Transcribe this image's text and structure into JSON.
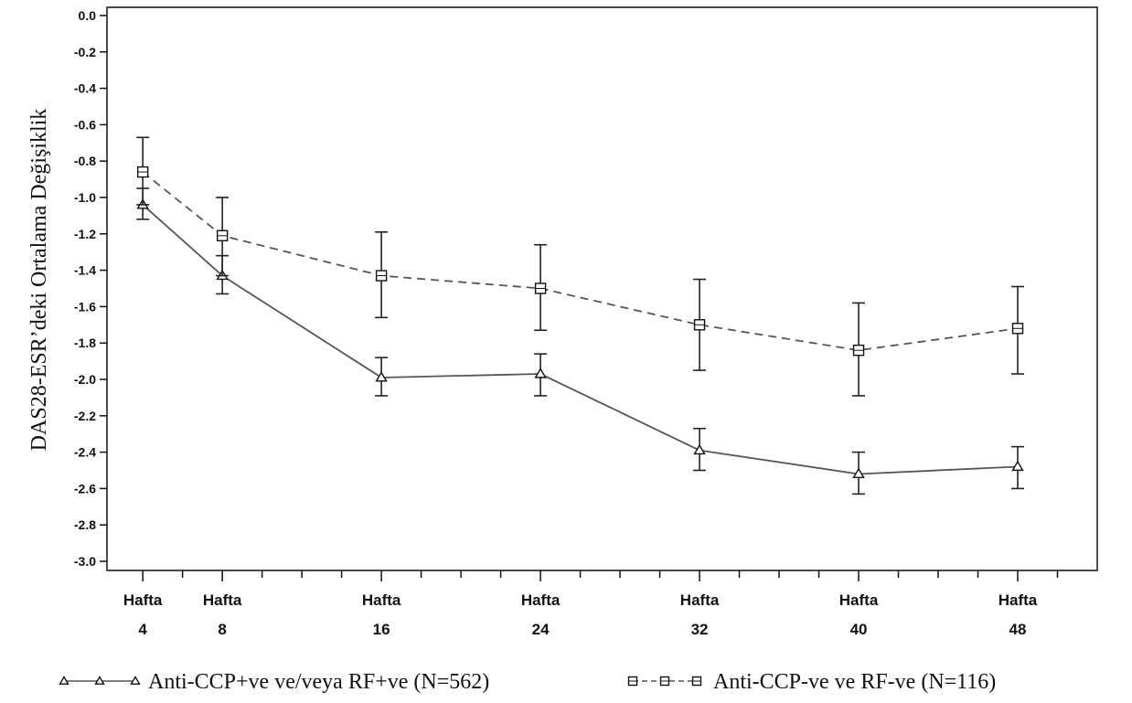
{
  "chart_data": {
    "type": "line",
    "ylabel": "DAS28-ESR’deki Ortalama Değişiklik",
    "xlabel": "",
    "ylim": [
      -3.0,
      0.0
    ],
    "ytick_step": 0.2,
    "x_ticks": [
      {
        "line1": "Hafta",
        "line2": "4",
        "week": 4
      },
      {
        "line1": "Hafta",
        "line2": "8",
        "week": 8
      },
      {
        "line1": "Hafta",
        "line2": "16",
        "week": 16
      },
      {
        "line1": "Hafta",
        "line2": "24",
        "week": 24
      },
      {
        "line1": "Hafta",
        "line2": "32",
        "week": 32
      },
      {
        "line1": "Hafta",
        "line2": "40",
        "week": 40
      },
      {
        "line1": "Hafta",
        "line2": "48",
        "week": 48
      }
    ],
    "x": [
      4,
      8,
      16,
      24,
      32,
      40,
      48
    ],
    "xlim": [
      2.2,
      52
    ],
    "series": [
      {
        "name": "Anti-CCP+ve ve/veya RF+ve (N=562)",
        "marker": "triangle",
        "line_style": "solid",
        "values": [
          -1.04,
          -1.43,
          -1.99,
          -1.97,
          -2.39,
          -2.52,
          -2.48
        ],
        "lower": [
          -1.12,
          -1.53,
          -2.09,
          -2.09,
          -2.5,
          -2.63,
          -2.6
        ],
        "upper": [
          -0.95,
          -1.32,
          -1.88,
          -1.86,
          -2.27,
          -2.4,
          -2.37
        ]
      },
      {
        "name": "Anti-CCP-ve ve RF-ve (N=116)",
        "marker": "square",
        "line_style": "dashed",
        "values": [
          -0.86,
          -1.21,
          -1.43,
          -1.5,
          -1.7,
          -1.84,
          -1.72
        ],
        "lower": [
          -1.04,
          -1.43,
          -1.66,
          -1.73,
          -1.95,
          -2.09,
          -1.97
        ],
        "upper": [
          -0.67,
          -1.0,
          -1.19,
          -1.26,
          -1.45,
          -1.58,
          -1.49
        ]
      }
    ],
    "colors": {
      "line": "#555555",
      "ink": "#111111",
      "background": "#ffffff"
    },
    "grid": false,
    "legend_position": "bottom"
  }
}
